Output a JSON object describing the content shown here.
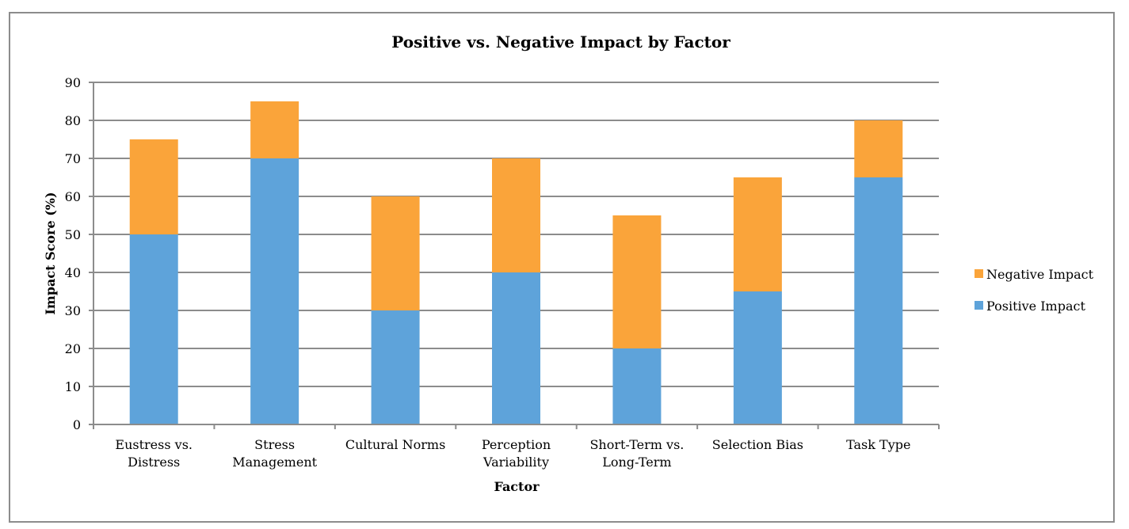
{
  "chart_data": {
    "type": "bar",
    "stacked": true,
    "title": "Positive vs. Negative Impact by Factor",
    "xlabel": "Factor",
    "ylabel": "Impact Score (%)",
    "ylim": [
      0,
      90
    ],
    "yticks": [
      0,
      10,
      20,
      30,
      40,
      50,
      60,
      70,
      80,
      90
    ],
    "grid": true,
    "legend_position": "right",
    "categories": [
      [
        "Eustress vs.",
        "Distress"
      ],
      [
        "Stress",
        "Management"
      ],
      [
        "Cultural Norms"
      ],
      [
        "Perception",
        "Variability"
      ],
      [
        "Short-Term vs.",
        "Long-Term"
      ],
      [
        "Selection Bias"
      ],
      [
        "Task Type"
      ]
    ],
    "series": [
      {
        "name": "Positive Impact",
        "color": "#5ea3da",
        "values": [
          50,
          70,
          30,
          40,
          20,
          35,
          65
        ]
      },
      {
        "name": "Negative Impact",
        "color": "#faa43a",
        "values": [
          25,
          15,
          30,
          30,
          35,
          30,
          15
        ]
      }
    ],
    "legend_order": [
      "Negative Impact",
      "Positive Impact"
    ]
  }
}
